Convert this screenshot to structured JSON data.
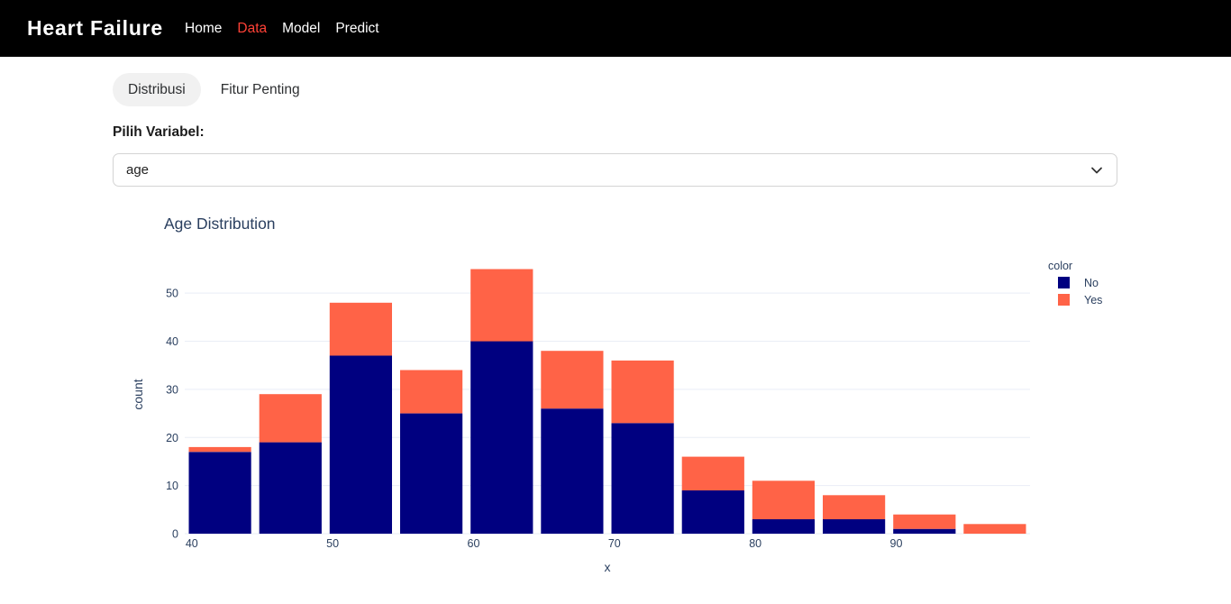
{
  "navbar": {
    "brand": "Heart Failure",
    "background": "#000000",
    "active_color": "#ff4136",
    "items": [
      {
        "label": "Home",
        "active": false
      },
      {
        "label": "Data",
        "active": true
      },
      {
        "label": "Model",
        "active": false
      },
      {
        "label": "Predict",
        "active": false
      }
    ]
  },
  "tabs": [
    {
      "label": "Distribusi",
      "active": true
    },
    {
      "label": "Fitur Penting",
      "active": false
    }
  ],
  "variable_select": {
    "label": "Pilih Variabel:",
    "value": "age",
    "icon": "chevron-down-icon"
  },
  "chart_data": {
    "type": "bar",
    "subtype": "stacked-histogram",
    "title": "Age Distribution",
    "xlabel": "x",
    "ylabel": "count",
    "legend_title": "color",
    "legend_position": "right",
    "grid": true,
    "bin_edges": [
      39.5,
      44.5,
      49.5,
      54.5,
      59.5,
      64.5,
      69.5,
      74.5,
      79.5,
      84.5,
      89.5,
      94.5,
      99.5
    ],
    "series": [
      {
        "name": "No",
        "color": "#000080",
        "values": [
          17,
          19,
          37,
          25,
          40,
          26,
          23,
          9,
          3,
          3,
          1,
          0
        ]
      },
      {
        "name": "Yes",
        "color": "#FF6347",
        "values": [
          1,
          10,
          11,
          9,
          15,
          12,
          13,
          7,
          8,
          5,
          3,
          2
        ]
      }
    ],
    "totals": [
      18,
      29,
      48,
      34,
      55,
      38,
      36,
      16,
      11,
      8,
      4,
      2
    ],
    "x_ticks": [
      40,
      50,
      60,
      70,
      80,
      90
    ],
    "y_ticks": [
      0,
      10,
      20,
      30,
      40,
      50
    ],
    "xlim": [
      39.5,
      99.5
    ],
    "ylim": [
      0,
      57.9
    ],
    "text_color": "#2a3f5f",
    "grid_color": "#e9edf6"
  }
}
